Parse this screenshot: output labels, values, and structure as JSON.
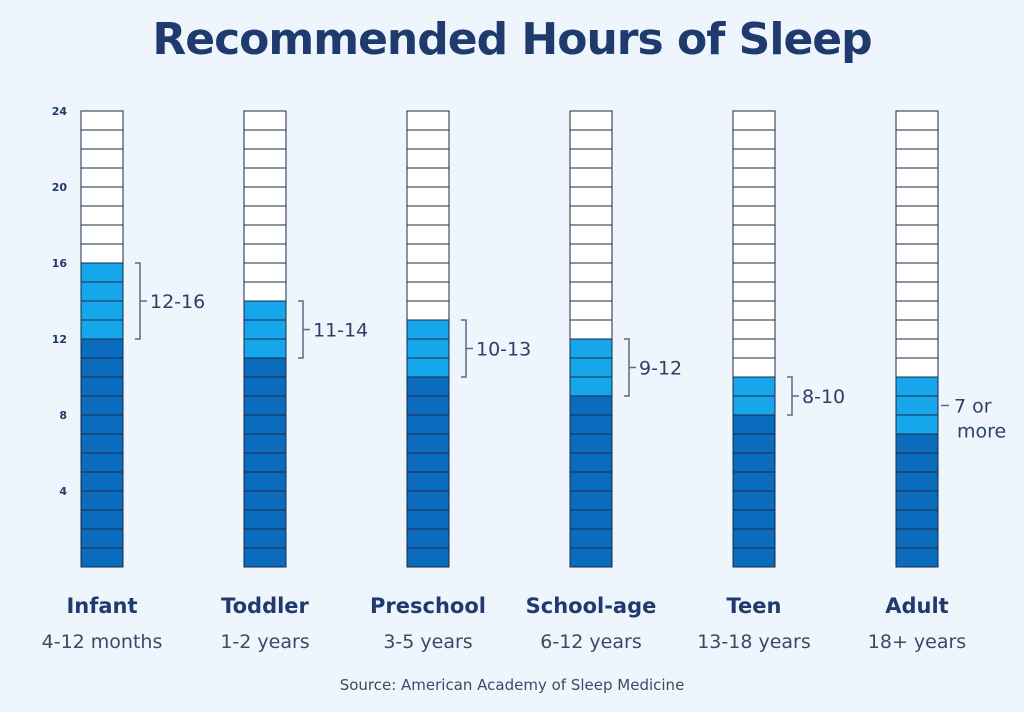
{
  "title": "Recommended Hours of Sleep",
  "source": "Source: American Academy of Sleep Medicine",
  "colors": {
    "background": "#eef5fc",
    "dark_blue": "#0b6bbd",
    "light_blue": "#16a6ec",
    "empty": "#ffffff",
    "cell_line": "#1a2b45",
    "text": "#1f3b6e"
  },
  "chart_data": {
    "type": "bar",
    "title": "Recommended Hours of Sleep",
    "ylim": [
      0,
      24
    ],
    "y_ticks": [
      4,
      8,
      12,
      16,
      20,
      24
    ],
    "categories": [
      "Infant",
      "Toddler",
      "Preschool",
      "School-age",
      "Teen",
      "Adult"
    ],
    "subtitles": [
      "4-12 months",
      "1-2 years",
      "3-5 years",
      "6-12 years",
      "13-18 years",
      "18+ years"
    ],
    "range_labels": [
      [
        "12-16"
      ],
      [
        "11-14"
      ],
      [
        "10-13"
      ],
      [
        "9-12"
      ],
      [
        "8-10"
      ],
      [
        "7 or",
        "more"
      ]
    ],
    "min_hours": [
      12,
      11,
      10,
      9,
      8,
      7
    ],
    "max_hours": [
      16,
      14,
      13,
      12,
      10,
      10
    ],
    "bracket": [
      true,
      true,
      true,
      true,
      true,
      false
    ],
    "grid": false
  }
}
